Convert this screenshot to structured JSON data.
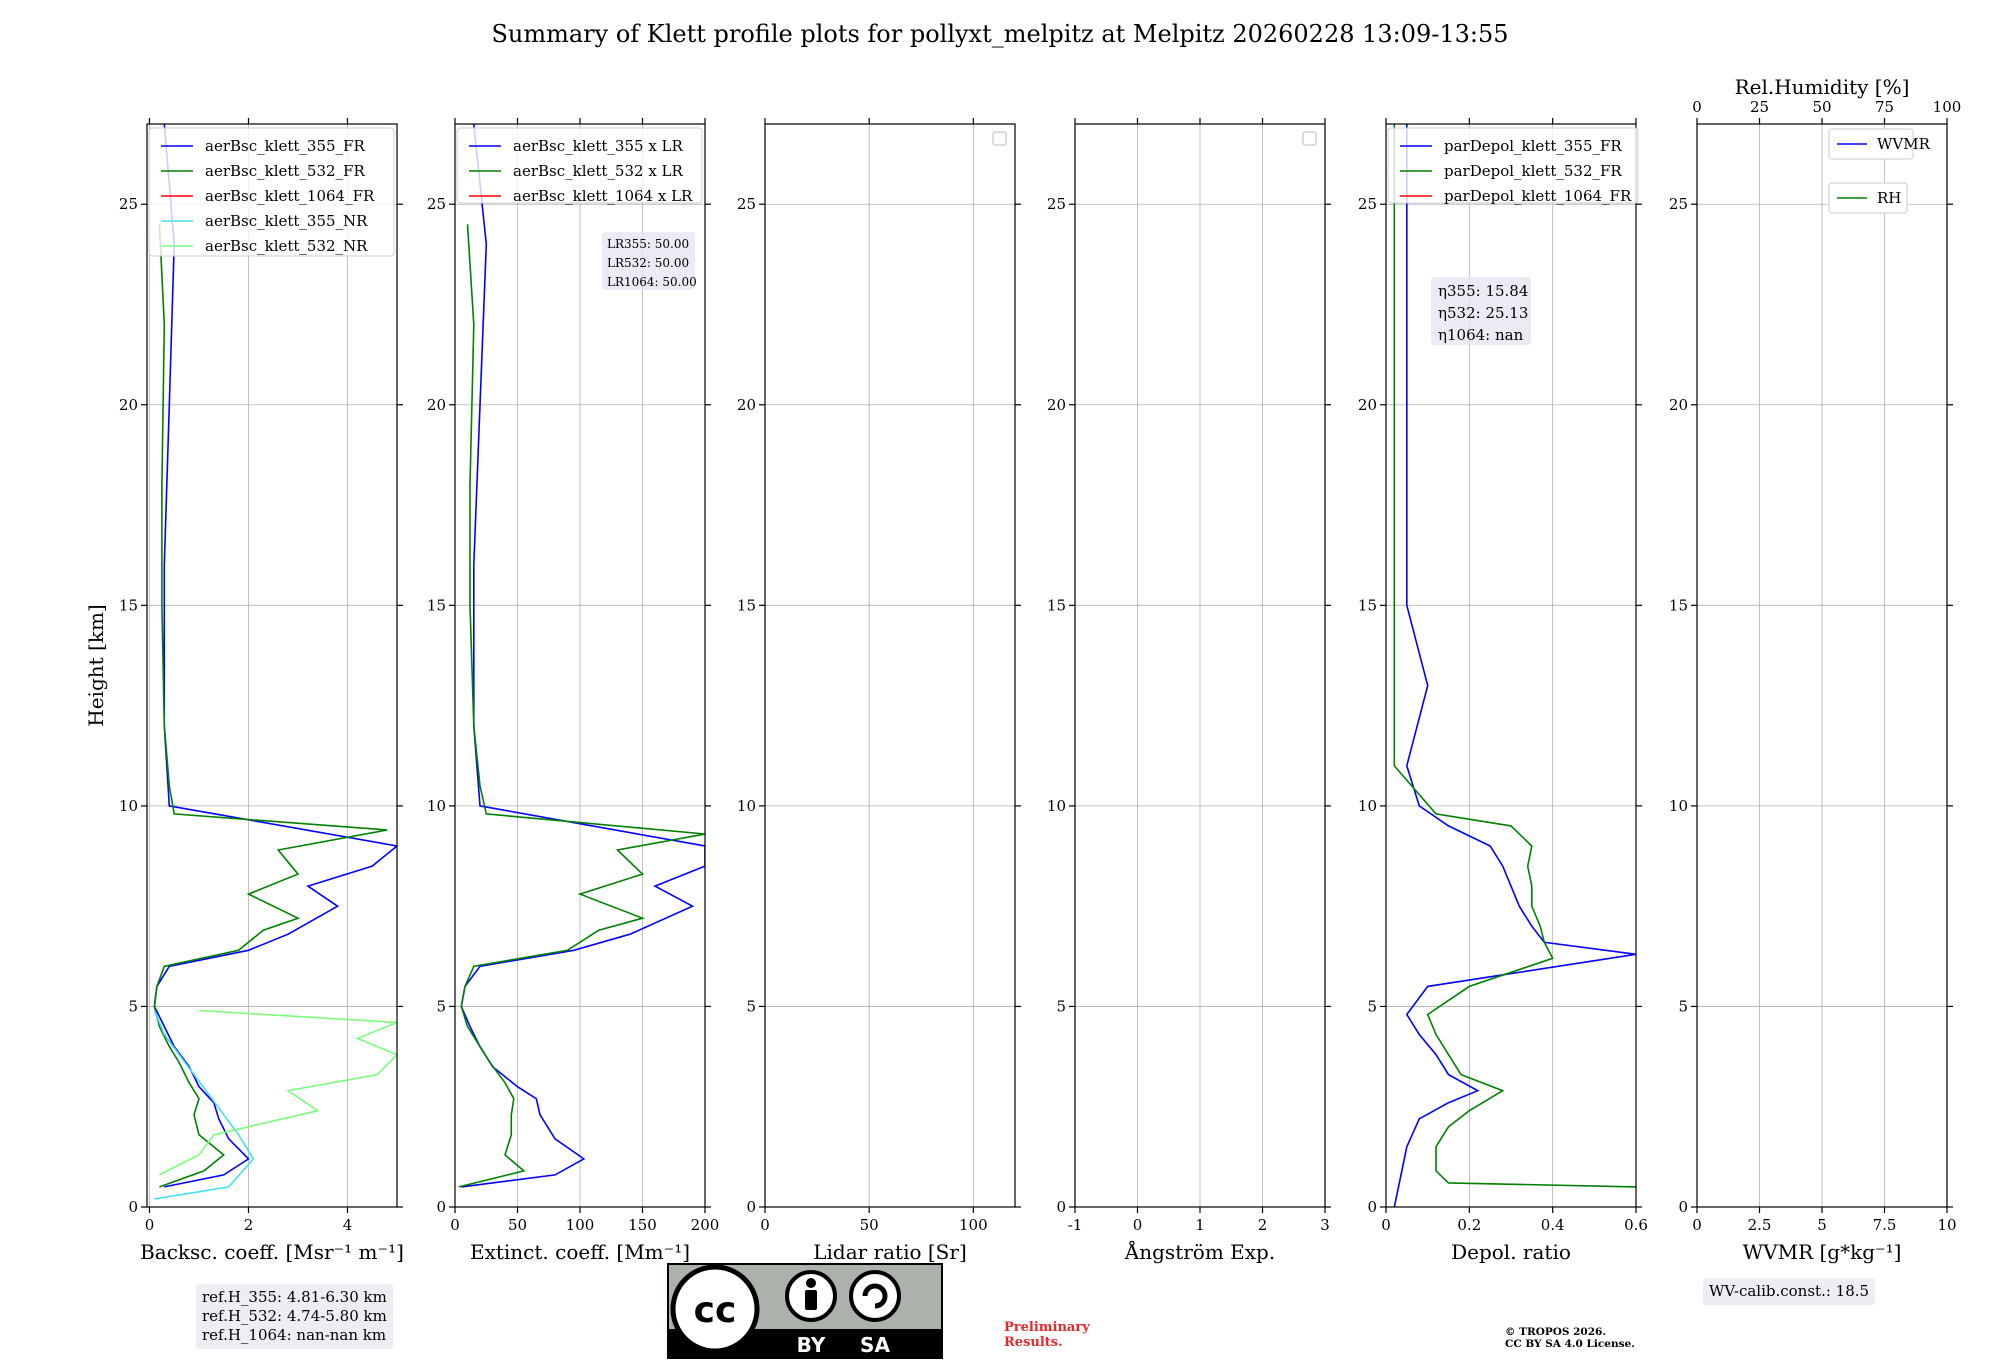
{
  "chart_data": {
    "type": "line",
    "title": "Summary of Klett profile plots for pollyxt_melpitz at Melpitz 20260228 13:09-13:55",
    "ylabel": "Height [km]",
    "ylim": [
      0,
      27
    ],
    "yticks": [
      0,
      5,
      10,
      15,
      20,
      25
    ],
    "grid": true,
    "panels": [
      {
        "name": "backscatter",
        "xlabel": "Backsc. coeff. [Msr⁻¹ m⁻¹]",
        "xlim": [
          -0.05,
          5
        ],
        "xticks": [
          0,
          2,
          4
        ],
        "legend": [
          "aerBsc_klett_355_FR",
          "aerBsc_klett_532_FR",
          "aerBsc_klett_1064_FR",
          "aerBsc_klett_355_NR",
          "aerBsc_klett_532_NR"
        ],
        "series": [
          {
            "name": "aerBsc_klett_355_FR",
            "color": "#0000ff",
            "points": [
              [
                0.3,
                0.5
              ],
              [
                1.5,
                0.8
              ],
              [
                2.0,
                1.2
              ],
              [
                1.6,
                1.7
              ],
              [
                1.4,
                2.2
              ],
              [
                1.3,
                2.6
              ],
              [
                1.0,
                3.0
              ],
              [
                0.8,
                3.5
              ],
              [
                0.5,
                4.0
              ],
              [
                0.3,
                4.5
              ],
              [
                0.1,
                5.0
              ],
              [
                0.15,
                5.5
              ],
              [
                0.4,
                6.0
              ],
              [
                2.0,
                6.4
              ],
              [
                2.8,
                6.8
              ],
              [
                3.8,
                7.5
              ],
              [
                3.2,
                8.0
              ],
              [
                4.5,
                8.5
              ],
              [
                5,
                9.0
              ],
              [
                0.4,
                10.0
              ],
              [
                0.3,
                12.0
              ],
              [
                0.3,
                16.0
              ],
              [
                0.4,
                20.0
              ],
              [
                0.5,
                24.0
              ],
              [
                0.3,
                27.0
              ]
            ]
          },
          {
            "name": "aerBsc_klett_532_FR",
            "color": "#008000",
            "points": [
              [
                0.2,
                0.5
              ],
              [
                1.1,
                0.9
              ],
              [
                1.5,
                1.3
              ],
              [
                1.0,
                1.8
              ],
              [
                0.9,
                2.3
              ],
              [
                1.0,
                2.7
              ],
              [
                0.8,
                3.1
              ],
              [
                0.6,
                3.6
              ],
              [
                0.4,
                4.0
              ],
              [
                0.2,
                4.5
              ],
              [
                0.1,
                5.0
              ],
              [
                0.15,
                5.5
              ],
              [
                0.3,
                6.0
              ],
              [
                1.8,
                6.4
              ],
              [
                2.3,
                6.9
              ],
              [
                3.0,
                7.2
              ],
              [
                2.0,
                7.8
              ],
              [
                3.0,
                8.3
              ],
              [
                2.6,
                8.9
              ],
              [
                4.8,
                9.4
              ],
              [
                0.5,
                9.8
              ],
              [
                0.4,
                10.5
              ],
              [
                0.3,
                12.0
              ],
              [
                0.25,
                15.0
              ],
              [
                0.25,
                18.0
              ],
              [
                0.3,
                22.0
              ],
              [
                0.2,
                24.5
              ]
            ]
          },
          {
            "name": "aerBsc_klett_355_NR",
            "color": "#40e0f0",
            "points": [
              [
                0.1,
                0.2
              ],
              [
                1.6,
                0.5
              ],
              [
                2.1,
                1.2
              ],
              [
                1.8,
                1.8
              ],
              [
                1.5,
                2.3
              ],
              [
                1.2,
                2.8
              ],
              [
                0.9,
                3.3
              ],
              [
                0.6,
                3.8
              ],
              [
                0.3,
                4.3
              ],
              [
                0.1,
                4.9
              ]
            ]
          },
          {
            "name": "aerBsc_klett_532_NR",
            "color": "#7cfc7c",
            "points": [
              [
                0.2,
                0.8
              ],
              [
                1.0,
                1.3
              ],
              [
                1.3,
                1.8
              ],
              [
                3.4,
                2.4
              ],
              [
                2.8,
                2.9
              ],
              [
                4.6,
                3.3
              ],
              [
                5,
                3.8
              ],
              [
                4.2,
                4.2
              ],
              [
                5,
                4.6
              ],
              [
                1.0,
                4.9
              ]
            ]
          }
        ]
      },
      {
        "name": "extinction",
        "xlabel": "Extinct. coeff. [Mm⁻¹]",
        "xlim": [
          0,
          200
        ],
        "xticks": [
          0,
          50,
          100,
          150,
          200
        ],
        "legend": [
          "aerBsc_klett_355 x LR",
          "aerBsc_klett_532 x LR",
          "aerBsc_klett_1064 x LR"
        ],
        "annotations": [
          "LR355: 50.00",
          "LR532: 50.00",
          "LR1064: 50.00"
        ],
        "series": [
          {
            "name": "aerBsc_klett_355 x LR",
            "color": "#0000ff",
            "points": [
              [
                5,
                0.5
              ],
              [
                80,
                0.8
              ],
              [
                103,
                1.2
              ],
              [
                80,
                1.7
              ],
              [
                68,
                2.3
              ],
              [
                65,
                2.7
              ],
              [
                50,
                3.0
              ],
              [
                30,
                3.5
              ],
              [
                20,
                4.0
              ],
              [
                12,
                4.5
              ],
              [
                5,
                5.0
              ],
              [
                8,
                5.5
              ],
              [
                20,
                6.0
              ],
              [
                95,
                6.4
              ],
              [
                140,
                6.8
              ],
              [
                190,
                7.5
              ],
              [
                160,
                8.0
              ],
              [
                200,
                8.5
              ],
              [
                200,
                9.0
              ],
              [
                20,
                10.0
              ],
              [
                15,
                12.0
              ],
              [
                15,
                16.0
              ],
              [
                20,
                20.0
              ],
              [
                25,
                24.0
              ],
              [
                15,
                27.0
              ]
            ]
          },
          {
            "name": "aerBsc_klett_532 x LR",
            "color": "#008000",
            "points": [
              [
                3,
                0.5
              ],
              [
                55,
                0.9
              ],
              [
                40,
                1.3
              ],
              [
                45,
                1.8
              ],
              [
                45,
                2.3
              ],
              [
                47,
                2.7
              ],
              [
                40,
                3.1
              ],
              [
                28,
                3.6
              ],
              [
                20,
                4.0
              ],
              [
                10,
                4.5
              ],
              [
                5,
                5.0
              ],
              [
                8,
                5.5
              ],
              [
                15,
                6.0
              ],
              [
                90,
                6.4
              ],
              [
                115,
                6.9
              ],
              [
                150,
                7.2
              ],
              [
                100,
                7.8
              ],
              [
                150,
                8.3
              ],
              [
                130,
                8.9
              ],
              [
                200,
                9.3
              ],
              [
                25,
                9.8
              ],
              [
                20,
                10.5
              ],
              [
                15,
                12.0
              ],
              [
                12,
                15.0
              ],
              [
                12,
                18.0
              ],
              [
                15,
                22.0
              ],
              [
                10,
                24.5
              ]
            ]
          }
        ]
      },
      {
        "name": "lidar_ratio",
        "xlabel": "Lidar ratio [Sr]",
        "xlim": [
          0,
          120
        ],
        "xticks": [
          0,
          50,
          100
        ],
        "series": []
      },
      {
        "name": "angstrom",
        "xlabel": "Ångström Exp.",
        "xlim": [
          -1,
          3
        ],
        "xticks": [
          -1,
          0,
          1,
          2,
          3
        ],
        "series": []
      },
      {
        "name": "depol",
        "xlabel": "Depol. ratio",
        "xlim": [
          0,
          0.6
        ],
        "xticks": [
          0.0,
          0.2,
          0.4,
          0.6
        ],
        "legend": [
          "parDepol_klett_355_FR",
          "parDepol_klett_532_FR",
          "parDepol_klett_1064_FR"
        ],
        "annotations": [
          "η355: 15.84",
          "η532: 25.13",
          "η1064: nan"
        ],
        "series": [
          {
            "name": "parDepol_klett_355_FR",
            "color": "#0000ff",
            "points": [
              [
                0.02,
                0.0
              ],
              [
                0.03,
                0.5
              ],
              [
                0.05,
                1.5
              ],
              [
                0.08,
                2.2
              ],
              [
                0.15,
                2.6
              ],
              [
                0.22,
                2.9
              ],
              [
                0.15,
                3.3
              ],
              [
                0.12,
                3.8
              ],
              [
                0.08,
                4.3
              ],
              [
                0.05,
                4.8
              ],
              [
                0.1,
                5.5
              ],
              [
                0.6,
                6.3
              ],
              [
                0.38,
                6.6
              ],
              [
                0.35,
                7.0
              ],
              [
                0.32,
                7.5
              ],
              [
                0.3,
                8.0
              ],
              [
                0.28,
                8.5
              ],
              [
                0.25,
                9.0
              ],
              [
                0.15,
                9.5
              ],
              [
                0.08,
                10.0
              ],
              [
                0.05,
                11.0
              ],
              [
                0.1,
                13.0
              ],
              [
                0.05,
                15.0
              ],
              [
                0.05,
                20.0
              ],
              [
                0.05,
                27.0
              ]
            ]
          },
          {
            "name": "parDepol_klett_532_FR",
            "color": "#008000",
            "points": [
              [
                0.6,
                0.5
              ],
              [
                0.15,
                0.6
              ],
              [
                0.12,
                0.9
              ],
              [
                0.12,
                1.5
              ],
              [
                0.15,
                2.0
              ],
              [
                0.2,
                2.4
              ],
              [
                0.28,
                2.9
              ],
              [
                0.18,
                3.3
              ],
              [
                0.15,
                3.8
              ],
              [
                0.12,
                4.3
              ],
              [
                0.1,
                4.8
              ],
              [
                0.2,
                5.5
              ],
              [
                0.4,
                6.2
              ],
              [
                0.38,
                6.6
              ],
              [
                0.37,
                7.0
              ],
              [
                0.35,
                7.5
              ],
              [
                0.35,
                8.0
              ],
              [
                0.34,
                8.5
              ],
              [
                0.35,
                9.0
              ],
              [
                0.3,
                9.5
              ],
              [
                0.12,
                9.8
              ],
              [
                0.02,
                11.0
              ],
              [
                0.02,
                13.0
              ],
              [
                0.02,
                27.0
              ]
            ]
          }
        ]
      },
      {
        "name": "wvmr",
        "xlabel": "WVMR [g*kg⁻¹]",
        "xlim": [
          0,
          10
        ],
        "xticks": [
          0.0,
          2.5,
          5.0,
          7.5,
          10.0
        ],
        "top_xlabel": "Rel.Humidity [%]",
        "top_xticks": [
          0,
          25,
          50,
          75,
          100
        ],
        "legend": [
          "WVMR",
          "RH"
        ],
        "series": []
      }
    ]
  },
  "info": {
    "ref_h": [
      "ref.H_355: 4.81-6.30 km",
      "ref.H_532: 4.74-5.80 km",
      "ref.H_1064: nan-nan km"
    ],
    "wv_calib": "WV-calib.const.: 18.5",
    "preliminary": [
      "Preliminary",
      "Results."
    ],
    "copyright": [
      "© TROPOS 2026.",
      "CC BY SA 4.0 License."
    ],
    "license_badge": {
      "cc": "cc",
      "by": "BY",
      "sa": "SA"
    }
  }
}
